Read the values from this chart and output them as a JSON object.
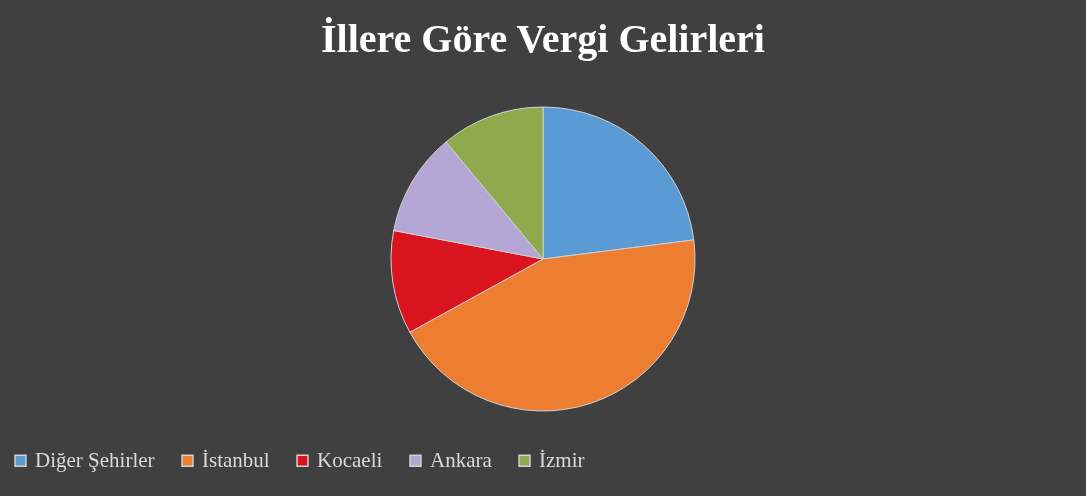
{
  "chart_data": {
    "type": "pie",
    "title": "İllere Göre Vergi Gelirleri",
    "categories": [
      "Diğer Şehirler",
      "İstanbul",
      "Kocaeli",
      "Ankara",
      "İzmir"
    ],
    "values": [
      23,
      44,
      11,
      11,
      11
    ],
    "colors": [
      "#5b9bd5",
      "#ed7d31",
      "#d9141e",
      "#b4a7d6",
      "#8faa4d"
    ],
    "legend": "bottom"
  }
}
